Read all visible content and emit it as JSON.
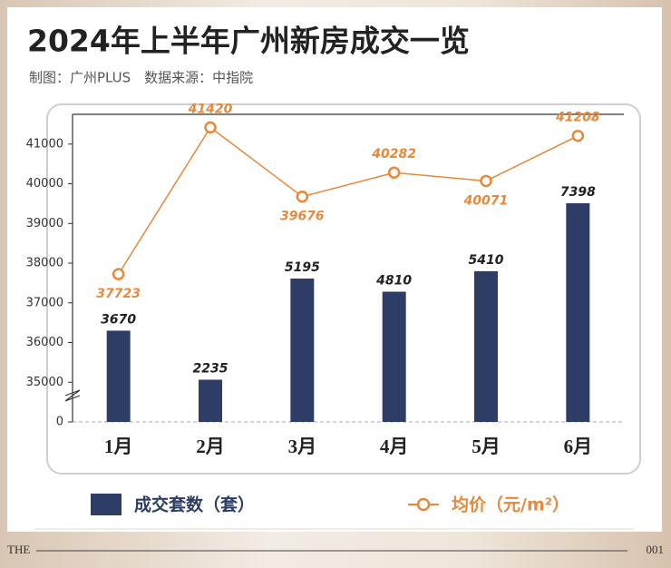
{
  "chart_data": {
    "type": "bar-line",
    "title": "2024年上半年广州新房成交一览",
    "subtitle": "制图：广州PLUS　数据来源：中指院",
    "categories": [
      "1月",
      "2月",
      "3月",
      "4月",
      "5月",
      "6月"
    ],
    "series": [
      {
        "name": "成交套数（套）",
        "type": "bar",
        "axis": "y2",
        "color": "#2d3d66",
        "values": [
          3670,
          2235,
          5195,
          4810,
          5410,
          7398
        ]
      },
      {
        "name": "均价（元/m²）",
        "type": "line",
        "color": "#e8883a",
        "values": [
          37723,
          41420,
          39676,
          40282,
          40071,
          41208
        ]
      }
    ],
    "ylim": [
      0,
      41750
    ],
    "axis_break": [
      0,
      34000
    ],
    "yticks": [
      0,
      35000,
      36000,
      37000,
      38000,
      39000,
      40000,
      41000
    ],
    "y2lim": [
      1000,
      10000
    ],
    "footer_left": "THE",
    "footer_right": "001"
  }
}
